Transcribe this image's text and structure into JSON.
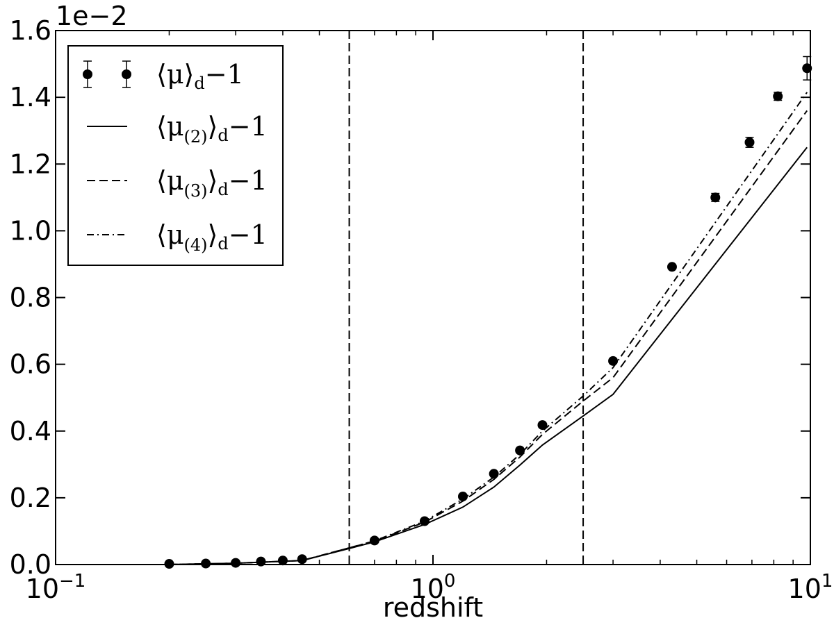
{
  "chart_data": {
    "type": "line",
    "xlabel": "redshift",
    "ylabel": "",
    "x_scale": "log",
    "xlim": [
      0.1,
      10
    ],
    "ylim": [
      0.0,
      1.6
    ],
    "y_offset_text": "1e−2",
    "x_ticks": [
      {
        "value": 0.1,
        "base": "10",
        "exp": "−1"
      },
      {
        "value": 1,
        "base": "10",
        "exp": "0"
      },
      {
        "value": 10,
        "base": "10",
        "exp": "1"
      }
    ],
    "y_ticks": [
      {
        "value": 0.0,
        "label": "0.0"
      },
      {
        "value": 0.2,
        "label": "0.2"
      },
      {
        "value": 0.4,
        "label": "0.4"
      },
      {
        "value": 0.6,
        "label": "0.6"
      },
      {
        "value": 0.8,
        "label": "0.8"
      },
      {
        "value": 1.0,
        "label": "1.0"
      },
      {
        "value": 1.2,
        "label": "1.2"
      },
      {
        "value": 1.4,
        "label": "1.4"
      },
      {
        "value": 1.6,
        "label": "1.6"
      }
    ],
    "vlines": [
      0.6,
      2.5
    ],
    "points": {
      "name_main": "⟨μ⟩",
      "name_sub": "d",
      "name_tail": "−1",
      "x": [
        0.2,
        0.25,
        0.3,
        0.35,
        0.4,
        0.45,
        0.7,
        0.95,
        1.2,
        1.45,
        1.7,
        1.95,
        3.0,
        4.3,
        5.6,
        6.9,
        8.2,
        9.8
      ],
      "y": [
        0.002,
        0.003,
        0.005,
        0.009,
        0.012,
        0.016,
        0.072,
        0.13,
        0.204,
        0.272,
        0.342,
        0.418,
        0.61,
        0.892,
        1.1,
        1.265,
        1.403,
        1.487
      ],
      "yerr": [
        0.002,
        0.002,
        0.002,
        0.002,
        0.002,
        0.002,
        0.003,
        0.004,
        0.005,
        0.005,
        0.006,
        0.006,
        0.008,
        0.01,
        0.012,
        0.015,
        0.012,
        0.035
      ]
    },
    "series": [
      {
        "name_main": "⟨μ",
        "name_sub": "(2)",
        "name_close": "⟩",
        "name_sub2": "d",
        "name_tail": "−1",
        "style": "solid",
        "x": [
          0.2,
          0.3,
          0.45,
          0.6,
          0.7,
          0.95,
          1.2,
          1.45,
          1.7,
          1.95,
          2.5,
          3.0,
          9.8
        ],
        "y": [
          0.0,
          0.004,
          0.012,
          0.048,
          0.068,
          0.12,
          0.172,
          0.232,
          0.298,
          0.358,
          0.445,
          0.51,
          1.25
        ]
      },
      {
        "name_main": "⟨μ",
        "name_sub": "(3)",
        "name_close": "⟩",
        "name_sub2": "d",
        "name_tail": "−1",
        "style": "dashed",
        "x": [
          0.2,
          0.3,
          0.45,
          0.6,
          0.7,
          0.95,
          1.2,
          1.45,
          1.7,
          1.95,
          2.5,
          3.0,
          9.8
        ],
        "y": [
          0.0,
          0.004,
          0.012,
          0.05,
          0.07,
          0.127,
          0.19,
          0.255,
          0.322,
          0.39,
          0.49,
          0.56,
          1.36
        ]
      },
      {
        "name_main": "⟨μ",
        "name_sub": "(4)",
        "name_close": "⟩",
        "name_sub2": "d",
        "name_tail": "−1",
        "style": "dashdot",
        "x": [
          0.2,
          0.3,
          0.45,
          0.6,
          0.7,
          0.95,
          1.2,
          1.45,
          1.7,
          1.95,
          2.5,
          3.0,
          9.8
        ],
        "y": [
          0.0,
          0.004,
          0.012,
          0.05,
          0.071,
          0.13,
          0.196,
          0.262,
          0.33,
          0.4,
          0.505,
          0.59,
          1.415
        ]
      }
    ],
    "legend_position": "top-left",
    "grid": false
  }
}
